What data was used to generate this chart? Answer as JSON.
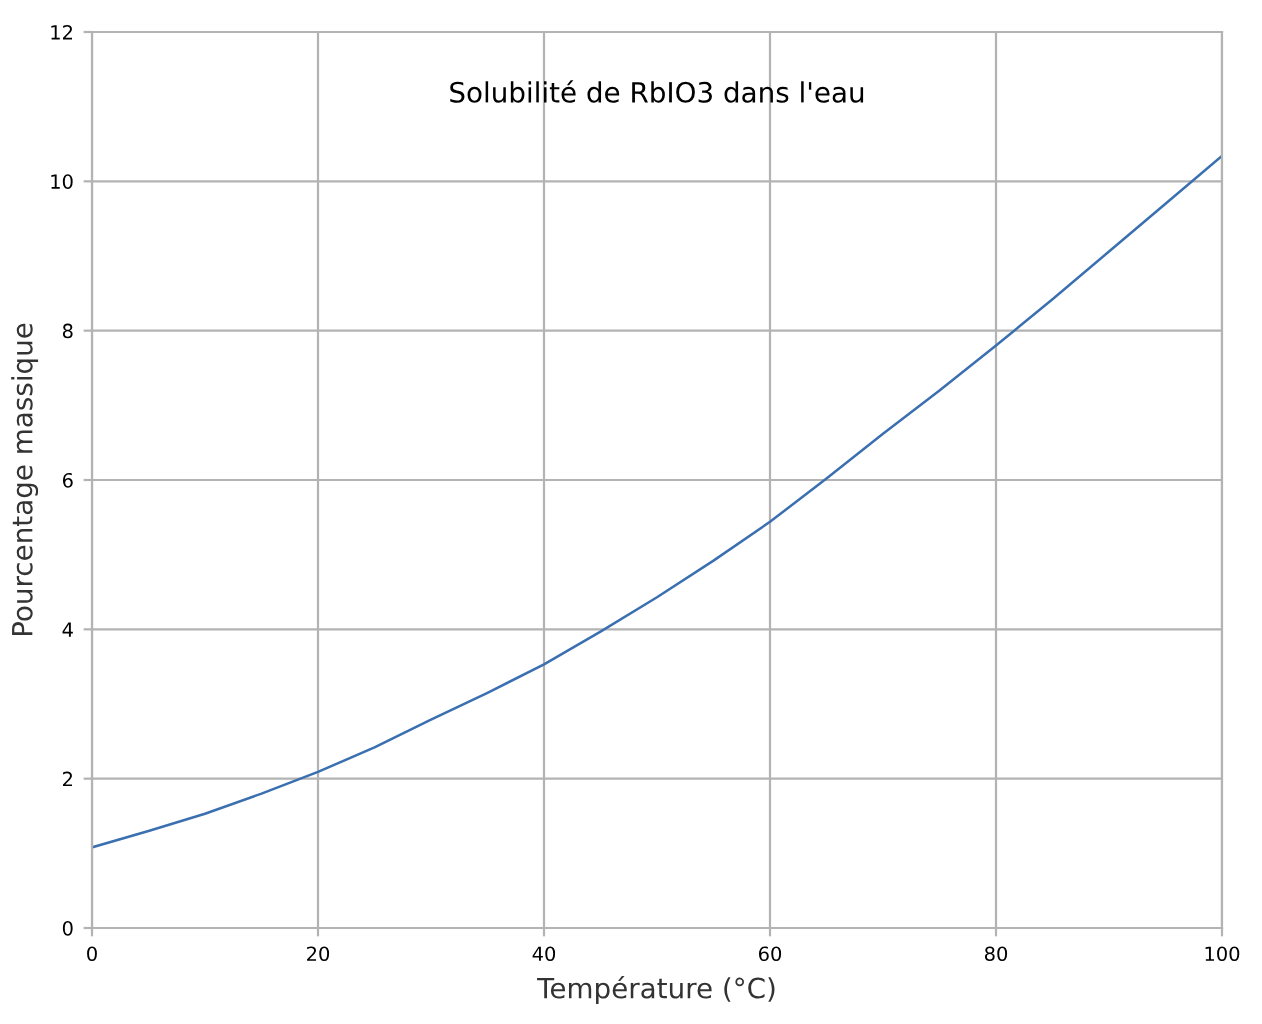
{
  "chart_data": {
    "type": "line",
    "title": "Solubilité de RbIO3 dans l'eau",
    "xlabel": "Température (°C)",
    "ylabel": "Pourcentage massique",
    "x": [
      0,
      5,
      10,
      15,
      20,
      25,
      30,
      35,
      40,
      45,
      50,
      55,
      60,
      65,
      70,
      75,
      80,
      85,
      90,
      95,
      100
    ],
    "series": [
      {
        "color": "#3a6fb0",
        "values": [
          1.08,
          1.3,
          1.53,
          1.8,
          2.09,
          2.42,
          2.79,
          3.15,
          3.53,
          3.97,
          4.43,
          4.92,
          5.44,
          6.02,
          6.62,
          7.2,
          7.8,
          8.42,
          9.06,
          9.7,
          10.34
        ]
      }
    ],
    "xlim": [
      0,
      100
    ],
    "ylim": [
      0,
      12
    ],
    "xticks": [
      0,
      20,
      40,
      60,
      80,
      100
    ],
    "yticks": [
      0,
      2,
      4,
      6,
      8,
      10,
      12
    ],
    "grid": true,
    "marker": "none",
    "line_style": "solid"
  }
}
